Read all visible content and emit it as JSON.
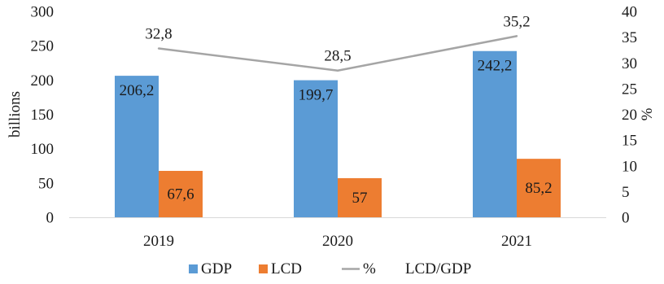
{
  "chart_data": {
    "type": "bar",
    "categories": [
      "2019",
      "2020",
      "2021"
    ],
    "series": [
      {
        "name": "GDP",
        "type": "bar",
        "axis": "left",
        "color": "#5b9bd5",
        "values": [
          206.2,
          199.7,
          242.2
        ],
        "labels": [
          "206,2",
          "199,7",
          "242,2"
        ]
      },
      {
        "name": "LCD",
        "type": "bar",
        "axis": "left",
        "color": "#ed7d31",
        "values": [
          67.6,
          57,
          85.2
        ],
        "labels": [
          "67,6",
          "57",
          "85,2"
        ]
      },
      {
        "name": "%",
        "type": "line",
        "axis": "right",
        "color": "#a5a5a5",
        "values": [
          32.8,
          28.5,
          35.2
        ],
        "labels": [
          "32,8",
          "28,5",
          "35,2"
        ]
      }
    ],
    "left_axis": {
      "label": "billions",
      "min": 0,
      "max": 300,
      "ticks": [
        "0",
        "50",
        "100",
        "150",
        "200",
        "250",
        "300"
      ]
    },
    "right_axis": {
      "label": "%",
      "min": 0,
      "max": 40,
      "ticks": [
        "0",
        "5",
        "10",
        "15",
        "20",
        "25",
        "30",
        "35",
        "40"
      ]
    },
    "legend": {
      "position": "bottom",
      "items": [
        {
          "label": "GDP",
          "marker": "square",
          "color": "#5b9bd5"
        },
        {
          "label": "LCD",
          "marker": "square",
          "color": "#ed7d31"
        },
        {
          "label": "%",
          "marker": "line",
          "color": "#a5a5a5"
        },
        {
          "label": "LCD/GDP",
          "marker": "none",
          "color": "#ffffff"
        }
      ]
    },
    "grid": false
  }
}
